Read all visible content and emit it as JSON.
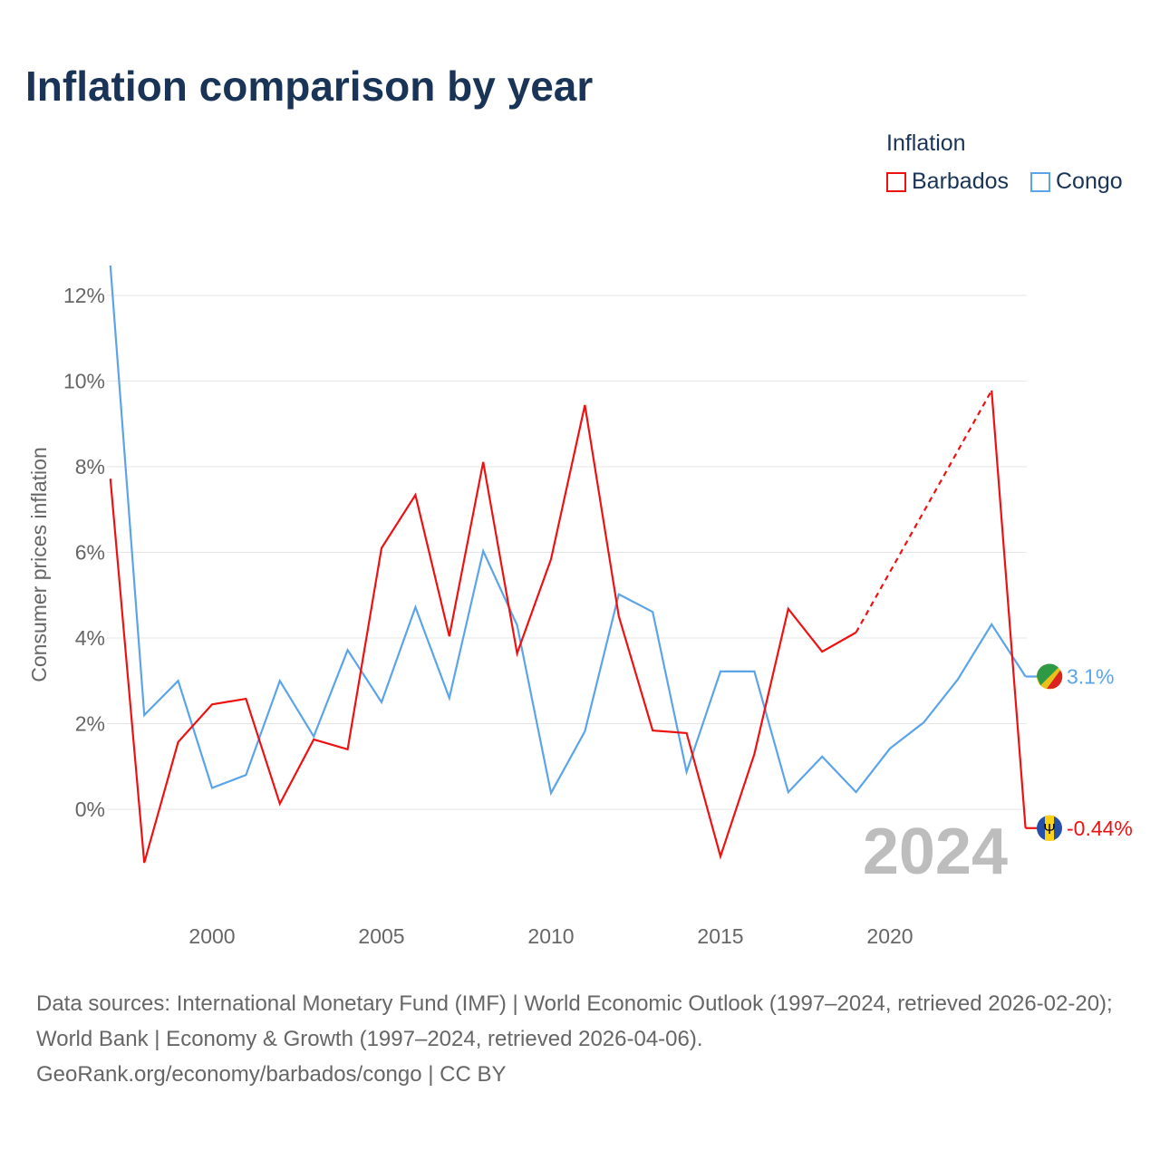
{
  "title": "Inflation comparison by year",
  "legend": {
    "title": "Inflation",
    "items": [
      {
        "name": "Barbados",
        "color": "#ee1111"
      },
      {
        "name": "Congo",
        "color": "#5ba4ea"
      }
    ]
  },
  "watermark_year": "2024",
  "source": {
    "line1": "Data sources: International Monetary Fund (IMF) | World Economic Outlook (1997–2024, retrieved 2026-02-20); World Bank | Economy & Growth (1997–2024, retrieved 2026-04-06).",
    "line2": "GeoRank.org/economy/barbados/congo | CC BY"
  },
  "chart_data": {
    "type": "line",
    "title": "Inflation comparison by year",
    "xlabel": "",
    "ylabel": "Consumer prices inflation",
    "xlim": [
      1997,
      2024
    ],
    "ylim": [
      -2.2,
      13.5
    ],
    "grid": true,
    "legend_placement": "top-right",
    "x": [
      1997,
      1998,
      1999,
      2000,
      2001,
      2002,
      2003,
      2004,
      2005,
      2006,
      2007,
      2008,
      2009,
      2010,
      2011,
      2012,
      2013,
      2014,
      2015,
      2016,
      2017,
      2018,
      2019,
      2020,
      2021,
      2022,
      2023,
      2024
    ],
    "xticks": [
      2000,
      2005,
      2010,
      2015,
      2020
    ],
    "yticks": [
      0,
      2,
      4,
      6,
      8,
      10,
      12
    ],
    "ytick_labels": [
      "0%",
      "2%",
      "4%",
      "6%",
      "8%",
      "10%",
      "12%"
    ],
    "series": [
      {
        "name": "Barbados",
        "color": "#ee1111",
        "end_label": "-0.44%",
        "values": [
          7.72,
          -1.25,
          1.57,
          2.45,
          2.58,
          0.13,
          1.63,
          1.4,
          6.1,
          7.34,
          4.04,
          8.11,
          3.64,
          5.84,
          9.44,
          4.51,
          1.84,
          1.78,
          -1.1,
          1.29,
          4.68,
          3.68,
          4.13,
          null,
          null,
          null,
          9.78,
          -0.44
        ]
      },
      {
        "name": "Congo",
        "color": "#5ba4ea",
        "end_label": "3.1%",
        "values": [
          12.7,
          2.2,
          3.0,
          0.5,
          0.8,
          3.0,
          1.7,
          3.72,
          2.5,
          4.72,
          2.6,
          6.03,
          4.3,
          0.38,
          1.82,
          5.02,
          4.61,
          0.87,
          3.22,
          3.22,
          0.4,
          1.23,
          0.4,
          1.42,
          2.03,
          3.03,
          4.32,
          3.1
        ]
      }
    ]
  }
}
